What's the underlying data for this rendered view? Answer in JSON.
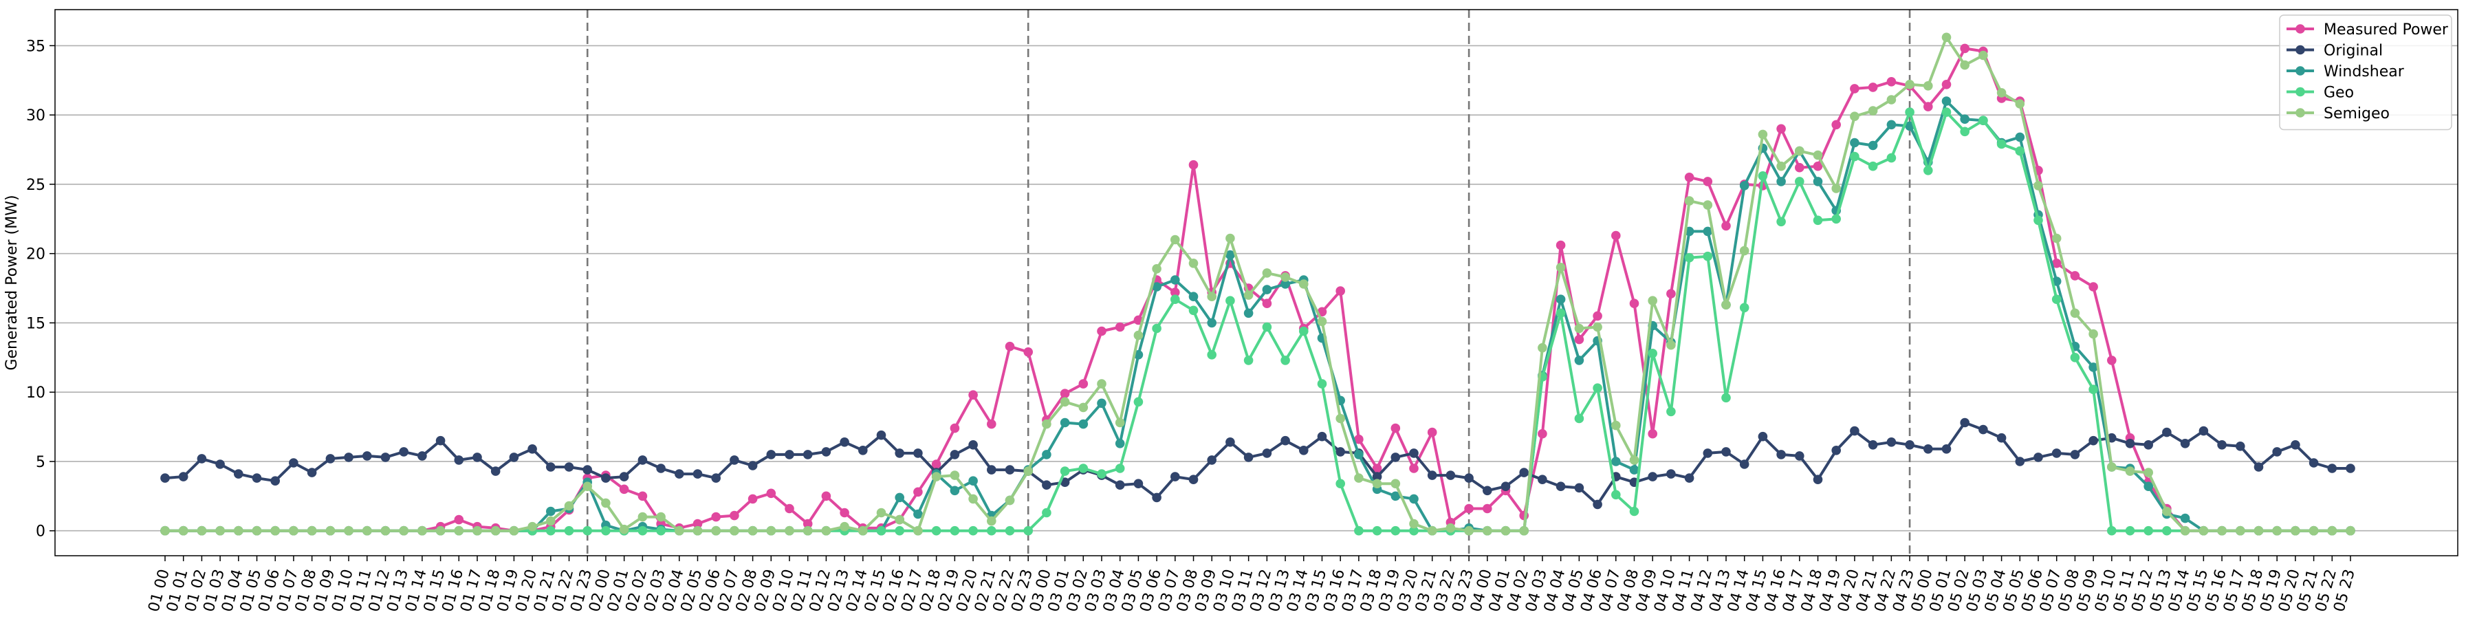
{
  "chart_data": {
    "type": "line",
    "title": "",
    "xlabel": "",
    "ylabel": "Generated Power (MW)",
    "ylim": [
      -1.8,
      37.6
    ],
    "yticks": [
      0,
      5,
      10,
      15,
      20,
      25,
      30,
      35
    ],
    "grid": "horizontal",
    "legend_position": "top-right",
    "day_separators": [
      "01 23",
      "02 23",
      "03 23",
      "04 23"
    ],
    "categories": [
      "01 00",
      "01 01",
      "01 02",
      "01 03",
      "01 04",
      "01 05",
      "01 06",
      "01 07",
      "01 08",
      "01 09",
      "01 10",
      "01 11",
      "01 12",
      "01 13",
      "01 14",
      "01 15",
      "01 16",
      "01 17",
      "01 18",
      "01 19",
      "01 20",
      "01 21",
      "01 22",
      "01 23",
      "02 00",
      "02 01",
      "02 02",
      "02 03",
      "02 04",
      "02 05",
      "02 06",
      "02 07",
      "02 08",
      "02 09",
      "02 10",
      "02 11",
      "02 12",
      "02 13",
      "02 14",
      "02 15",
      "02 16",
      "02 17",
      "02 18",
      "02 19",
      "02 20",
      "02 21",
      "02 22",
      "02 23",
      "03 00",
      "03 01",
      "03 02",
      "03 03",
      "03 04",
      "03 05",
      "03 06",
      "03 07",
      "03 08",
      "03 09",
      "03 10",
      "03 11",
      "03 12",
      "03 13",
      "03 14",
      "03 15",
      "03 16",
      "03 17",
      "03 18",
      "03 19",
      "03 20",
      "03 21",
      "03 22",
      "03 23",
      "04 00",
      "04 01",
      "04 02",
      "04 03",
      "04 04",
      "04 05",
      "04 06",
      "04 07",
      "04 08",
      "04 09",
      "04 10",
      "04 11",
      "04 12",
      "04 13",
      "04 14",
      "04 15",
      "04 16",
      "04 17",
      "04 18",
      "04 19",
      "04 20",
      "04 21",
      "04 22",
      "04 23",
      "05 00",
      "05 01",
      "05 02",
      "05 03",
      "05 04",
      "05 05",
      "05 06",
      "05 07",
      "05 08",
      "05 09",
      "05 10",
      "05 11",
      "05 12",
      "05 13",
      "05 14",
      "05 15",
      "05 16",
      "05 17",
      "05 18",
      "05 19",
      "05 20",
      "05 21",
      "05 22",
      "05 23"
    ],
    "series": [
      {
        "name": "Measured Power",
        "color": "#e0479e",
        "values": [
          0,
          0,
          0,
          0,
          0,
          0,
          0,
          0,
          0,
          0,
          0,
          0,
          0,
          0,
          0,
          0.3,
          0.8,
          0.3,
          0.2,
          0,
          0,
          0.3,
          1.5,
          3.8,
          4,
          3,
          2.5,
          0.5,
          0.2,
          0.5,
          1,
          1.1,
          2.3,
          2.7,
          1.6,
          0.5,
          2.5,
          1.3,
          0.2,
          0.2,
          0.8,
          2.8,
          4.8,
          7.4,
          9.8,
          7.7,
          13.3,
          12.9,
          8,
          9.9,
          10.6,
          14.4,
          14.7,
          15.2,
          18.1,
          17.2,
          26.4,
          17.2,
          19.3,
          17.5,
          16.4,
          18.4,
          14.6,
          15.8,
          17.3,
          6.6,
          4.5,
          7.4,
          4.5,
          7.1,
          0.6,
          1.6,
          1.6,
          2.9,
          1.1,
          7,
          20.6,
          13.8,
          15.5,
          21.3,
          16.4,
          7,
          17.1,
          25.5,
          25.2,
          22,
          25,
          24.9,
          29,
          26.2,
          26.3,
          29.3,
          31.9,
          32,
          32.4,
          32.1,
          30.6,
          32.2,
          34.8,
          34.6,
          31.2,
          31,
          26,
          19.3,
          18.4,
          17.6,
          12.3,
          6.7,
          3.5,
          1.6,
          0,
          0,
          0,
          0,
          0,
          0,
          0,
          0,
          0,
          0
        ]
      },
      {
        "name": "Original",
        "color": "#31446b",
        "values": [
          3.8,
          3.9,
          5.2,
          4.8,
          4.1,
          3.8,
          3.6,
          4.9,
          4.2,
          5.2,
          5.3,
          5.4,
          5.3,
          5.7,
          5.4,
          6.5,
          5.1,
          5.3,
          4.3,
          5.3,
          5.9,
          4.6,
          4.6,
          4.4,
          3.8,
          3.9,
          5.1,
          4.5,
          4.1,
          4.1,
          3.8,
          5.1,
          4.7,
          5.5,
          5.5,
          5.5,
          5.7,
          6.4,
          5.8,
          6.9,
          5.6,
          5.6,
          4.2,
          5.5,
          6.2,
          4.4,
          4.4,
          4.3,
          3.3,
          3.5,
          4.4,
          4,
          3.3,
          3.4,
          2.4,
          3.9,
          3.7,
          5.1,
          6.4,
          5.3,
          5.6,
          6.5,
          5.8,
          6.8,
          5.7,
          5.6,
          3.9,
          5.3,
          5.6,
          4,
          4,
          3.8,
          2.9,
          3.2,
          4.2,
          3.7,
          3.2,
          3.1,
          1.9,
          3.9,
          3.5,
          3.9,
          4.1,
          3.8,
          5.6,
          5.7,
          4.8,
          6.8,
          5.5,
          5.4,
          3.7,
          5.8,
          7.2,
          6.2,
          6.4,
          6.2,
          5.9,
          5.9,
          7.8,
          7.3,
          6.7,
          5,
          5.3,
          5.6,
          5.5,
          6.5,
          6.7,
          6.3,
          6.2,
          7.1,
          6.3,
          7.2,
          6.2,
          6.1,
          4.6,
          5.7,
          6.2,
          4.9,
          4.5,
          4.5
        ]
      },
      {
        "name": "Windshear",
        "color": "#2e9a92",
        "values": [
          0,
          0,
          0,
          0,
          0,
          0,
          0,
          0,
          0,
          0,
          0,
          0,
          0,
          0,
          0,
          0,
          0,
          0,
          0,
          0,
          0,
          1.4,
          1.6,
          3.5,
          0.4,
          0,
          0.3,
          0.1,
          0,
          0,
          0,
          0,
          0,
          0,
          0,
          0,
          0,
          0.1,
          0,
          0,
          2.4,
          1.2,
          4.1,
          2.9,
          3.6,
          1.1,
          2.2,
          4.4,
          5.5,
          7.8,
          7.7,
          9.2,
          6.3,
          12.7,
          17.6,
          18.1,
          16.9,
          15,
          19.9,
          15.7,
          17.4,
          17.8,
          18.1,
          13.9,
          9.4,
          5.5,
          3,
          2.5,
          2.3,
          0,
          0,
          0.2,
          0,
          0,
          0,
          11.2,
          16.7,
          12.3,
          13.7,
          5,
          4.4,
          14.8,
          13.6,
          21.6,
          21.6,
          16.3,
          24.9,
          27.6,
          25.2,
          27.4,
          25.2,
          23.1,
          28,
          27.8,
          29.3,
          29.2,
          26.6,
          31,
          29.7,
          29.6,
          28,
          28.4,
          22.8,
          18,
          13.3,
          11.8,
          4.6,
          4.5,
          3.2,
          1.2,
          0.9,
          0,
          0,
          0,
          0,
          0,
          0,
          0,
          0,
          0
        ]
      },
      {
        "name": "Geo",
        "color": "#4fd68c",
        "values": [
          0,
          0,
          0,
          0,
          0,
          0,
          0,
          0,
          0,
          0,
          0,
          0,
          0,
          0,
          0,
          0,
          0,
          0,
          0,
          0,
          0,
          0,
          0,
          0,
          0,
          0,
          0,
          0,
          0,
          0,
          0,
          0,
          0,
          0,
          0,
          0,
          0,
          0,
          0,
          0,
          0,
          0,
          0,
          0,
          0,
          0,
          0,
          0,
          1.3,
          4.3,
          4.5,
          4.1,
          4.5,
          9.3,
          14.6,
          16.7,
          15.9,
          12.7,
          16.6,
          12.3,
          14.7,
          12.3,
          14.4,
          10.6,
          3.4,
          0,
          0,
          0,
          0,
          0,
          0,
          0,
          0,
          0,
          0,
          11.1,
          15.7,
          8.1,
          10.3,
          2.6,
          1.4,
          12.8,
          8.6,
          19.7,
          19.8,
          9.6,
          16.1,
          25.6,
          22.3,
          25.2,
          22.4,
          22.5,
          27,
          26.3,
          26.9,
          30.2,
          26,
          30.2,
          28.8,
          29.6,
          27.9,
          27.4,
          22.4,
          16.7,
          12.5,
          10.2,
          0,
          0,
          0,
          0,
          0,
          0,
          0,
          0,
          0,
          0,
          0,
          0,
          0,
          0
        ]
      },
      {
        "name": "Semigeo",
        "color": "#98cc85",
        "values": [
          0,
          0,
          0,
          0,
          0,
          0,
          0,
          0,
          0,
          0,
          0,
          0,
          0,
          0,
          0,
          0,
          0,
          0,
          0,
          0,
          0.3,
          0.7,
          1.8,
          3.2,
          2,
          0.1,
          1,
          1,
          0,
          0,
          0,
          0,
          0,
          0,
          0,
          0,
          0,
          0.3,
          0,
          1.3,
          0.8,
          0,
          3.9,
          4,
          2.3,
          0.7,
          2.2,
          4.3,
          7.7,
          9.3,
          8.9,
          10.6,
          7.8,
          14.1,
          18.9,
          21,
          19.3,
          16.9,
          21.1,
          17,
          18.6,
          18.3,
          17.8,
          15.1,
          8.1,
          3.8,
          3.4,
          3.4,
          0.5,
          0,
          0.2,
          0,
          0,
          0,
          0,
          13.2,
          19,
          14.6,
          14.7,
          7.6,
          5.1,
          16.6,
          13.4,
          23.8,
          23.5,
          16.3,
          20.2,
          28.6,
          26.3,
          27.4,
          27.1,
          24.7,
          29.9,
          30.3,
          31.1,
          32.2,
          32.1,
          35.6,
          33.6,
          34.3,
          31.6,
          30.8,
          24.9,
          21.1,
          15.7,
          14.2,
          4.6,
          4.3,
          4.2,
          1.4,
          0,
          0,
          0,
          0,
          0,
          0,
          0,
          0,
          0,
          0
        ]
      }
    ]
  }
}
